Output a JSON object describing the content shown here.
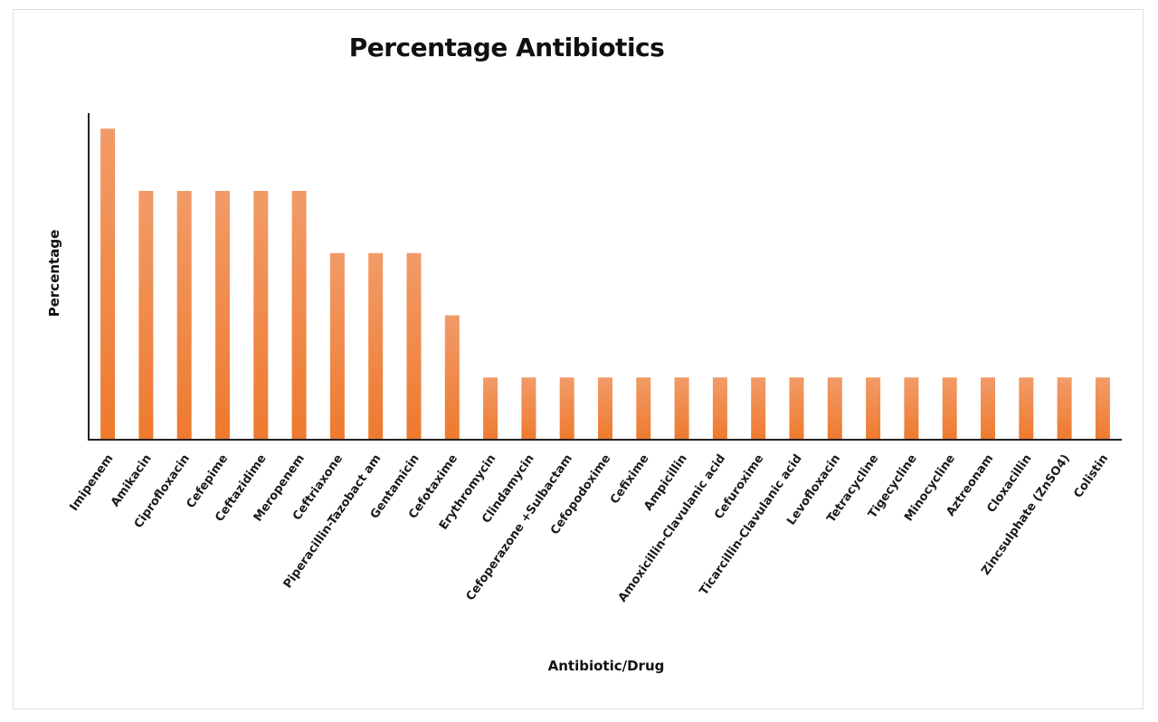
{
  "chart_data": {
    "type": "bar",
    "title": "Percentage Antibiotics",
    "xlabel": "Antibiotic/Drug",
    "ylabel": "Percentage",
    "categories": [
      "Imipenem",
      "Amikacin",
      "Ciprofloxacin",
      "Cefepime",
      "Ceftazidime",
      "Meropenem",
      "Ceftriaxone",
      "Piperacillin-Tazobact am",
      "Gentamicin",
      "Cefotaxime",
      "Erythromycin",
      "Clindamycin",
      "Cefoperazone +Sulbactam",
      "Cefopodoxime",
      "Cefixime",
      "Ampicillin",
      "Amoxicillin-Clavulanic acid",
      "Cefuroxime",
      "Ticarcillin-Clavulanic acid",
      "Levofloxacin",
      "Tetracycline",
      "Tigecycline",
      "Minocycline",
      "Aztreonam",
      "Cloxacillin",
      "Zincsulphate (ZnSO4)",
      "Colistin"
    ],
    "values": [
      5,
      4,
      4,
      4,
      4,
      4,
      3,
      3,
      3,
      2,
      1,
      1,
      1,
      1,
      1,
      1,
      1,
      1,
      1,
      1,
      1,
      1,
      1,
      1,
      1,
      1,
      1
    ],
    "ylim": [
      0,
      5.25
    ],
    "grid": false,
    "legend": "none",
    "bar_color_top": "#f29b68",
    "bar_color_bottom": "#ee7a2e",
    "axis_color": "#222222"
  }
}
